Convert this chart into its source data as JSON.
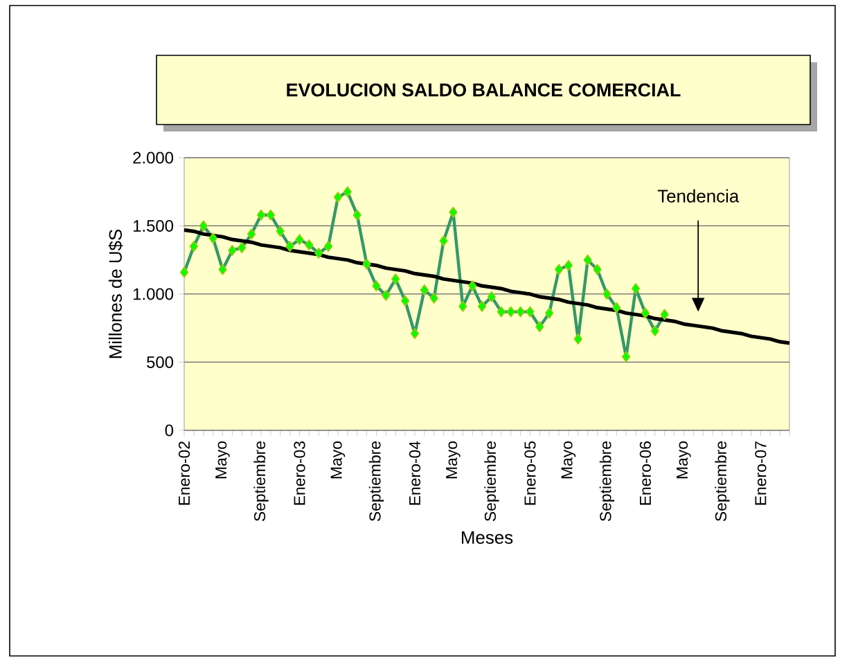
{
  "chart_data": {
    "type": "line",
    "title": "EVOLUCION SALDO BALANCE COMERCIAL",
    "xlabel": "Meses",
    "ylabel": "Millones de U$S",
    "categories": [
      "Enero-02",
      null,
      null,
      null,
      "Mayo",
      null,
      null,
      null,
      "Septiembre",
      null,
      null,
      null,
      "Enero-03",
      null,
      null,
      null,
      "Mayo",
      null,
      null,
      null,
      "Septiembre",
      null,
      null,
      null,
      "Enero-04",
      null,
      null,
      null,
      "Mayo",
      null,
      null,
      null,
      "Septiembre",
      null,
      null,
      null,
      "Enero-05",
      null,
      null,
      null,
      "Mayo",
      null,
      null,
      null,
      "Septiembre",
      null,
      null,
      null,
      "Enero-06",
      null,
      null,
      null,
      "Mayo",
      null,
      null,
      null,
      "Septiembre",
      null,
      null,
      null,
      "Enero-07",
      null,
      null,
      null
    ],
    "series": [
      {
        "color": "#339966",
        "marker": "diamond",
        "values": [
          1160,
          1350,
          1500,
          1410,
          1180,
          1320,
          1340,
          1440,
          1580,
          1580,
          1460,
          1350,
          1400,
          1360,
          1300,
          1350,
          1710,
          1750,
          1580,
          1220,
          1060,
          990,
          1110,
          950,
          710,
          1030,
          970,
          1390,
          1600,
          910,
          1060,
          910,
          980,
          870,
          870,
          870,
          870,
          760,
          860,
          1180,
          1210,
          670,
          1250,
          1180,
          1000,
          900,
          540,
          1040,
          860,
          730,
          850,
          null,
          null,
          null,
          null,
          null,
          null,
          null,
          null,
          null,
          null,
          null,
          null,
          null
        ]
      },
      {
        "type": "line",
        "color": "#000000",
        "marker": "none",
        "values": [
          1470,
          1460,
          1440,
          1430,
          1420,
          1400,
          1390,
          1380,
          1360,
          1350,
          1340,
          1320,
          1310,
          1300,
          1290,
          1270,
          1260,
          1250,
          1230,
          1220,
          1210,
          1190,
          1180,
          1170,
          1150,
          1140,
          1130,
          1110,
          1100,
          1090,
          1080,
          1060,
          1050,
          1040,
          1020,
          1010,
          1000,
          980,
          970,
          960,
          940,
          930,
          920,
          900,
          890,
          880,
          860,
          850,
          840,
          820,
          810,
          800,
          780,
          770,
          760,
          750,
          730,
          720,
          710,
          690,
          680,
          670,
          650,
          640
        ]
      }
    ],
    "ylim": [
      0,
      2000
    ],
    "yticks": [
      0,
      {
        "value": 500,
        "label": "500"
      },
      {
        "value": 1000,
        "label": "1.000"
      },
      {
        "value": 1500,
        "label": "1.500"
      },
      {
        "value": 2000,
        "label": "2.000"
      }
    ],
    "grid": "y",
    "line_style": "solid",
    "annotations": [
      "Tendencia"
    ]
  }
}
